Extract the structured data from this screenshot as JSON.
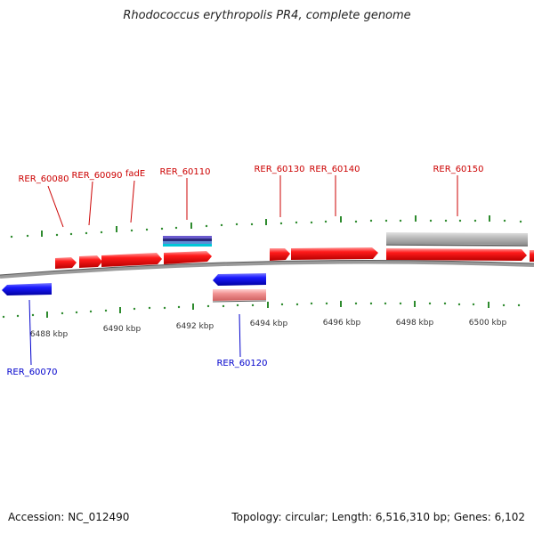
{
  "title": "Rhodococcus erythropolis PR4, complete genome",
  "footer": {
    "accession": "Accession: NC_012490",
    "summary": "Topology: circular; Length: 6,516,310 bp; Genes: 6,102"
  },
  "colors": {
    "forward": "#ff0000",
    "reverse": "#0000ee",
    "forward_pale": "#f08080",
    "gray_feature": "#b4b4b4",
    "tick": "#2e8b2e",
    "backbone": "#7a7a7a",
    "label_forward": "#cc0000",
    "label_reverse": "#0000cc"
  },
  "scale_labels": [
    "6488 kbp",
    "6490 kbp",
    "6492 kbp",
    "6494 kbp",
    "6496 kbp",
    "6498 kbp",
    "6500 kbp"
  ],
  "gene_labels": {
    "forward": [
      "RER_60080",
      "RER_60090",
      "fadE",
      "RER_60110",
      "RER_60130",
      "RER_60140",
      "RER_60150"
    ],
    "reverse": [
      "RER_60070",
      "RER_60120"
    ]
  }
}
